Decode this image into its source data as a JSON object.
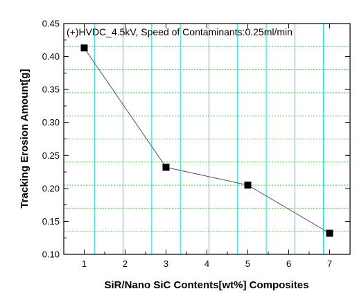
{
  "chart_data": {
    "type": "scatter",
    "title": "(+)HVDC_4.5kV, Speed of Contaminants:0.25ml/min",
    "xlabel": "SiR/Nano SiC Contents[wt%] Composites",
    "ylabel": "Tracking Erosion Amount[g]",
    "xlim": [
      0.5,
      7.5
    ],
    "ylim": [
      0.1,
      0.45
    ],
    "xticks": [
      1,
      2,
      3,
      4,
      5,
      6,
      7
    ],
    "yticks": [
      "0.10",
      "0.15",
      "0.20",
      "0.25",
      "0.30",
      "0.35",
      "0.40",
      "0.45"
    ],
    "grid": true,
    "marker": "square",
    "connected": true,
    "series": [
      {
        "x": [
          1,
          3,
          5,
          7
        ],
        "y": [
          0.413,
          0.232,
          0.205,
          0.132
        ]
      }
    ]
  },
  "colors": {
    "grid_vertical": "#00e0e0",
    "grid_horizontal": "#44cc44",
    "line": "#555555",
    "marker": "#000000",
    "axis": "#000000"
  }
}
